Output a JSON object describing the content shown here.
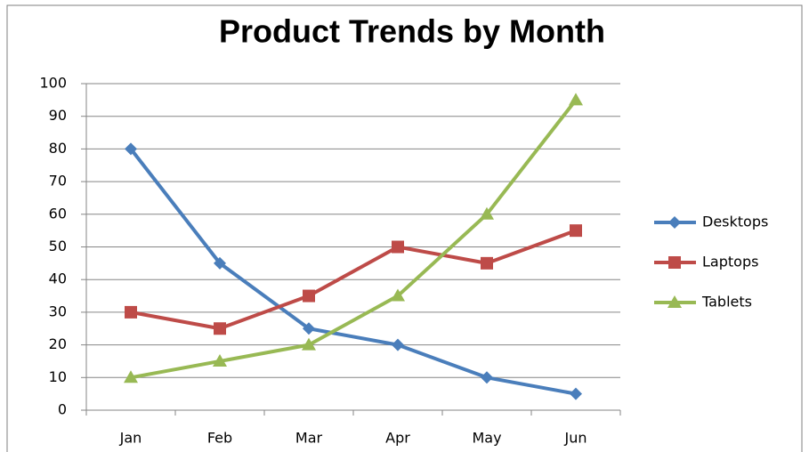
{
  "chart_data": {
    "type": "line",
    "title": "Product Trends by Month",
    "categories": [
      "Jan",
      "Feb",
      "Mar",
      "Apr",
      "May",
      "Jun"
    ],
    "series": [
      {
        "name": "Desktops",
        "color": "#4a7ebb",
        "marker": "diamond",
        "values": [
          80,
          45,
          25,
          20,
          10,
          5
        ]
      },
      {
        "name": "Laptops",
        "color": "#be4b48",
        "marker": "square",
        "values": [
          30,
          25,
          35,
          50,
          45,
          55
        ]
      },
      {
        "name": "Tablets",
        "color": "#98b954",
        "marker": "triangle",
        "values": [
          10,
          15,
          20,
          35,
          60,
          95
        ]
      }
    ],
    "ylim": [
      0,
      100
    ],
    "yticks": [
      0,
      10,
      20,
      30,
      40,
      50,
      60,
      70,
      80,
      90,
      100
    ],
    "grid": true,
    "legend": "right"
  }
}
